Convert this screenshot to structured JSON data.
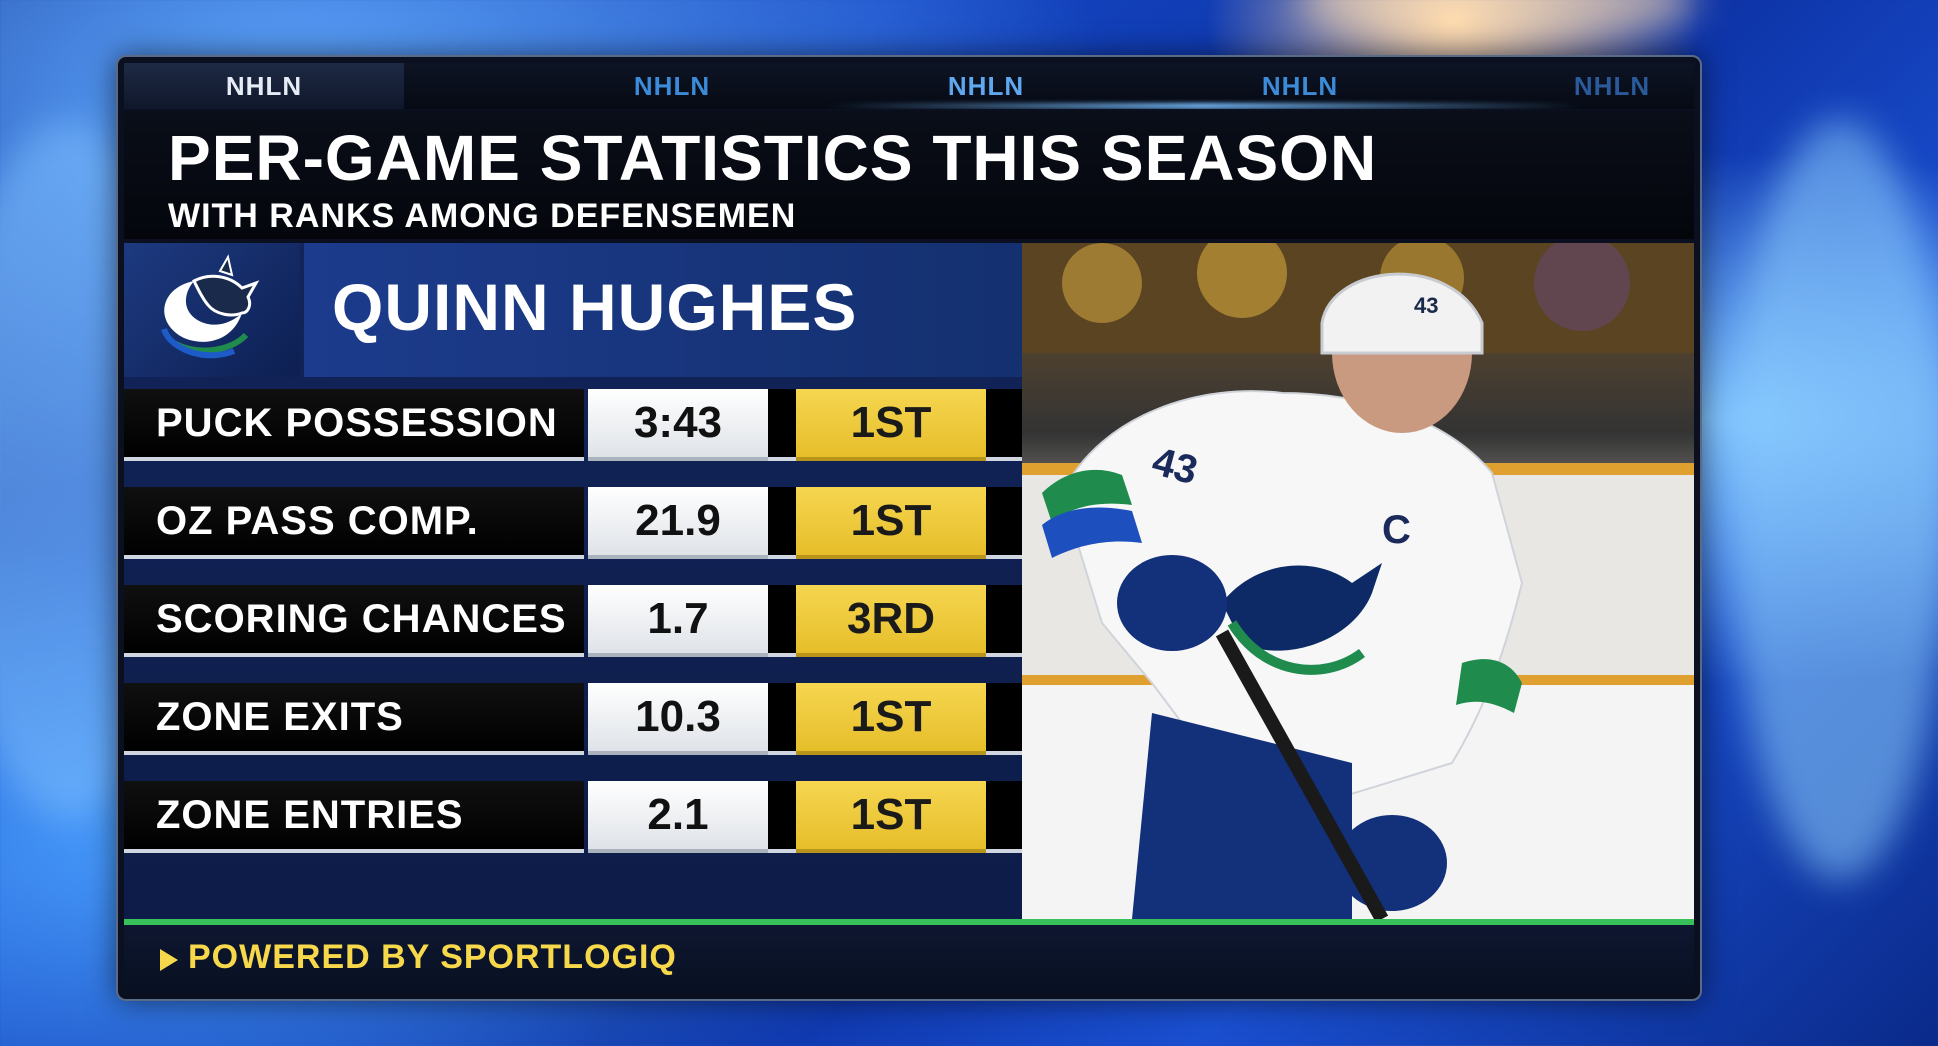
{
  "tabs": [
    {
      "label": "NHLN",
      "active": true
    },
    {
      "label": "NHLN",
      "active": false
    },
    {
      "label": "NHLN",
      "active": false
    },
    {
      "label": "NHLN",
      "active": false
    },
    {
      "label": "NHLN",
      "active": false
    }
  ],
  "header": {
    "title": "PER-GAME STATISTICS THIS SEASON",
    "subtitle": "WITH RANKS AMONG DEFENSEMEN"
  },
  "player": {
    "name": "QUINN HUGHES",
    "team_logo_icon": "canucks-orca-logo-icon",
    "jersey_number": "43",
    "jersey_letter": "C"
  },
  "stats": [
    {
      "label": "PUCK POSSESSION",
      "value": "3:43",
      "rank": "1ST"
    },
    {
      "label": "OZ PASS COMP.",
      "value": "21.9",
      "rank": "1ST"
    },
    {
      "label": "SCORING CHANCES",
      "value": "1.7",
      "rank": "3RD"
    },
    {
      "label": "ZONE EXITS",
      "value": "10.3",
      "rank": "1ST"
    },
    {
      "label": "ZONE ENTRIES",
      "value": "2.1",
      "rank": "1ST"
    }
  ],
  "footer": {
    "text": "POWERED BY SPORTLOGIQ",
    "arrow_icon": "play-triangle-icon"
  },
  "colors": {
    "rank_bg": "#f0cc3a",
    "footer_text": "#f6d84a",
    "accent_green": "#38c15a",
    "tab_text": "#3c8bd8"
  }
}
